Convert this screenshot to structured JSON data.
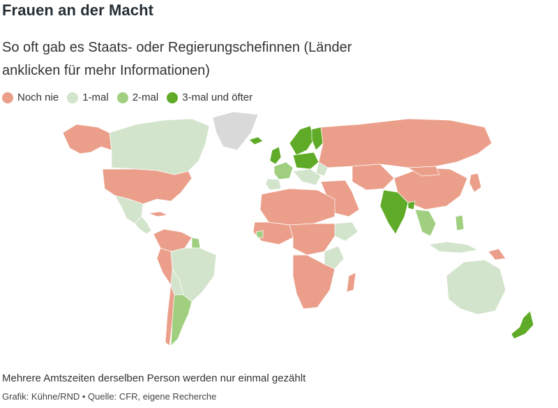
{
  "title": "Frauen an der Macht",
  "subtitle": "So oft gab es Staats- oder Regierungschefinnen (Länder anklicken für mehr Informationen)",
  "legend": [
    {
      "label": "Noch nie",
      "color": "#eb9f8a"
    },
    {
      "label": "1-mal",
      "color": "#d3e4cc"
    },
    {
      "label": "2-mal",
      "color": "#a0cf80"
    },
    {
      "label": "3-mal und öfter",
      "color": "#5fab27"
    }
  ],
  "colors": {
    "never": "#eb9f8a",
    "once": "#d3e4cc",
    "twice": "#a0cf80",
    "three_plus": "#5fab27",
    "no_data": "#d9d9d9"
  },
  "note": "Mehrere Amtszeiten derselben Person werden nur einmal gezählt",
  "credit": "Grafik: Kühne/RND • Quelle: CFR, eigene Recherche"
}
